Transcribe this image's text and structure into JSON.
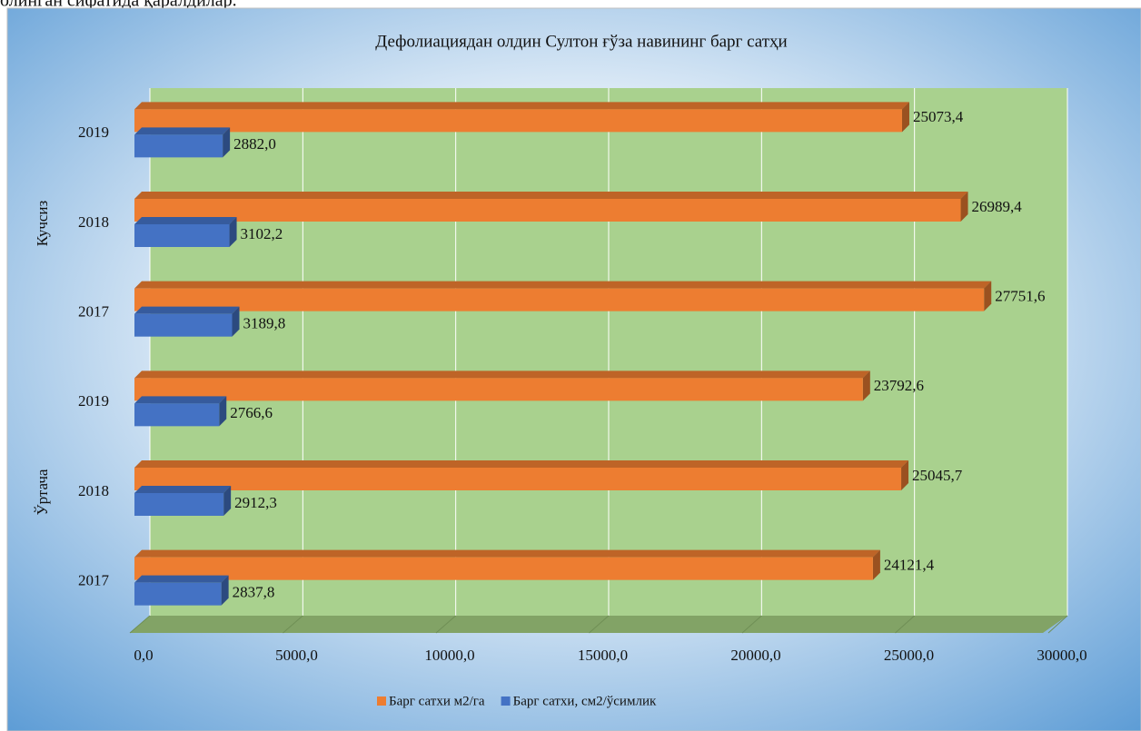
{
  "page_text": "олинган сифатида қаралдилар.",
  "chart_data": {
    "type": "bar3d_horizontal",
    "title": "Дефолиациядан олдин Султон ғўза навининг барг сатҳи",
    "categories": [
      "2017",
      "2018",
      "2019",
      "2017",
      "2018",
      "2019"
    ],
    "group_labels": [
      "Ўртача",
      "Кучсиз"
    ],
    "series": [
      {
        "name": "Барг сатхи м2/га",
        "color": "#ed7d31",
        "values": [
          24121.4,
          25045.7,
          23792.6,
          27751.6,
          26989.4,
          25073.4
        ],
        "value_labels": [
          "24121,4",
          "25045,7",
          "23792,6",
          "27751,6",
          "26989,4",
          "25073,4"
        ]
      },
      {
        "name": "Барг сатхи, см2/ўсимлик",
        "color": "#4472c4",
        "values": [
          2837.8,
          2912.3,
          2766.6,
          3189.8,
          3102.2,
          2882.0
        ],
        "value_labels": [
          "2837,8",
          "2912,3",
          "2766,6",
          "3189,8",
          "3102,2",
          "2882,0"
        ]
      }
    ],
    "xlim": [
      0,
      30000
    ],
    "xticks": [
      {
        "value": 0,
        "label": "0,0"
      },
      {
        "value": 5000,
        "label": "5000,0"
      },
      {
        "value": 10000,
        "label": "10000,0"
      },
      {
        "value": 15000,
        "label": "15000,0"
      },
      {
        "value": 20000,
        "label": "20000,0"
      },
      {
        "value": 25000,
        "label": "25000,0"
      },
      {
        "value": 30000,
        "label": "30000,0"
      }
    ],
    "grid": true,
    "legend": "bottom"
  }
}
